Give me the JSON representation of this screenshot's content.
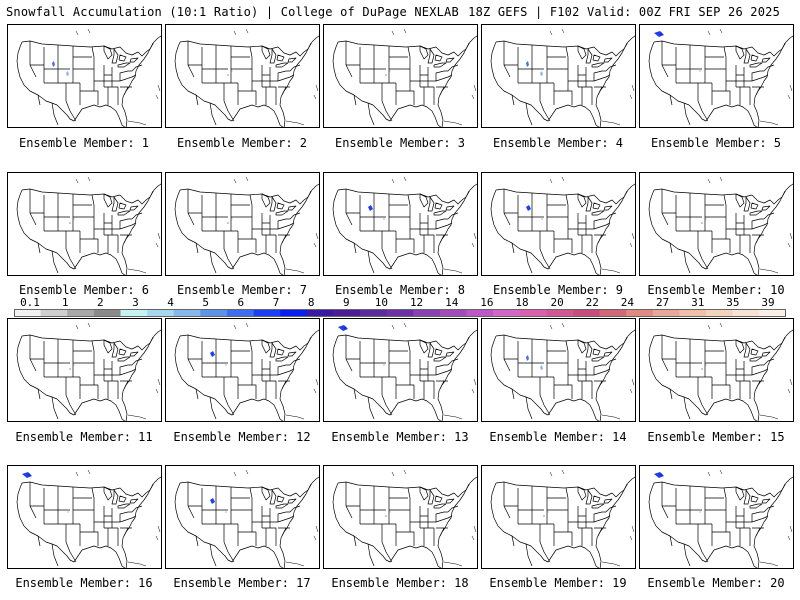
{
  "header": {
    "left": "Snowfall Accumulation (10:1 Ratio) | College of DuPage NEXLAB",
    "right": "18Z GEFS | F102 Valid: 00Z FRI SEP 26 2025"
  },
  "members": [
    {
      "label": "Ensemble Member: 1",
      "snow": "small-wyoming"
    },
    {
      "label": "Ensemble Member: 2",
      "snow": "trace"
    },
    {
      "label": "Ensemble Member: 3",
      "snow": "trace"
    },
    {
      "label": "Ensemble Member: 4",
      "snow": "small-wyoming"
    },
    {
      "label": "Ensemble Member: 5",
      "snow": "northwest"
    },
    {
      "label": "Ensemble Member: 6",
      "snow": "trace"
    },
    {
      "label": "Ensemble Member: 7",
      "snow": "trace"
    },
    {
      "label": "Ensemble Member: 8",
      "snow": "montana"
    },
    {
      "label": "Ensemble Member: 9",
      "snow": "montana"
    },
    {
      "label": "Ensemble Member: 10",
      "snow": "trace"
    },
    {
      "label": "Ensemble Member: 11",
      "snow": "trace"
    },
    {
      "label": "Ensemble Member: 12",
      "snow": "montana"
    },
    {
      "label": "Ensemble Member: 13",
      "snow": "northwest"
    },
    {
      "label": "Ensemble Member: 14",
      "snow": "small-wyoming"
    },
    {
      "label": "Ensemble Member: 15",
      "snow": "trace"
    },
    {
      "label": "Ensemble Member: 16",
      "snow": "northwest"
    },
    {
      "label": "Ensemble Member: 17",
      "snow": "montana"
    },
    {
      "label": "Ensemble Member: 18",
      "snow": "trace"
    },
    {
      "label": "Ensemble Member: 19",
      "snow": "trace"
    },
    {
      "label": "Ensemble Member: 20",
      "snow": "northwest"
    }
  ],
  "colorbar": {
    "labels": [
      "0.1",
      "1",
      "2",
      "3",
      "4",
      "5",
      "6",
      "7",
      "8",
      "9",
      "10",
      "12",
      "14",
      "16",
      "18",
      "20",
      "22",
      "24",
      "27",
      "31",
      "35",
      "39"
    ],
    "colors": [
      "#f2f2f2",
      "#cfcfcf",
      "#a8a8a8",
      "#8a8a8a",
      "#c6f2f2",
      "#a8d8f0",
      "#86b8ee",
      "#5c94e8",
      "#3d6ef0",
      "#1c3ff5",
      "#0a1ff0",
      "#3a1aa0",
      "#4a1c96",
      "#5a2a9e",
      "#6e30a8",
      "#8840b2",
      "#a24cbc",
      "#bc58c6",
      "#d466c6",
      "#dc60b0",
      "#d25894",
      "#c84c7c",
      "#d06878",
      "#e08a82",
      "#e8a898",
      "#f0c0a8",
      "#f5d4bc",
      "#f8e4d4",
      "#fbf0e6"
    ]
  }
}
